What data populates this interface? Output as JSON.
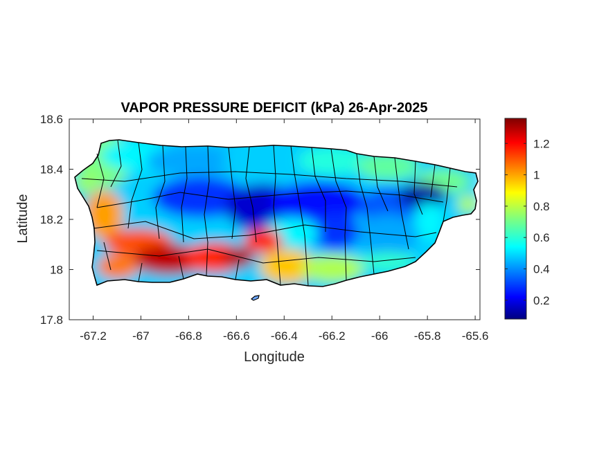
{
  "title": "VAPOR PRESSURE DEFICIT (kPa) 26-Apr-2025",
  "x_axis": {
    "label": "Longitude",
    "range": [
      -67.3,
      -65.58
    ],
    "ticks": [
      "-67.2",
      "-67",
      "-66.8",
      "-66.6",
      "-66.4",
      "-66.2",
      "-66",
      "-65.8",
      "-65.6"
    ]
  },
  "y_axis": {
    "label": "Latitude",
    "range": [
      17.8,
      18.6
    ],
    "ticks": [
      "17.8",
      "18",
      "18.2",
      "18.4",
      "18.6"
    ]
  },
  "colorbar": {
    "colormap": "jet",
    "range": [
      0.08,
      1.36
    ],
    "ticks": [
      "0.2",
      "0.4",
      "0.6",
      "0.8",
      "1",
      "1.2"
    ]
  },
  "colors": {
    "outline": "#000000",
    "axis": "#262626"
  },
  "map": {
    "region": "Puerto Rico",
    "variable": "vapor pressure deficit",
    "units": "kPa",
    "date": "26-Apr-2025"
  }
}
